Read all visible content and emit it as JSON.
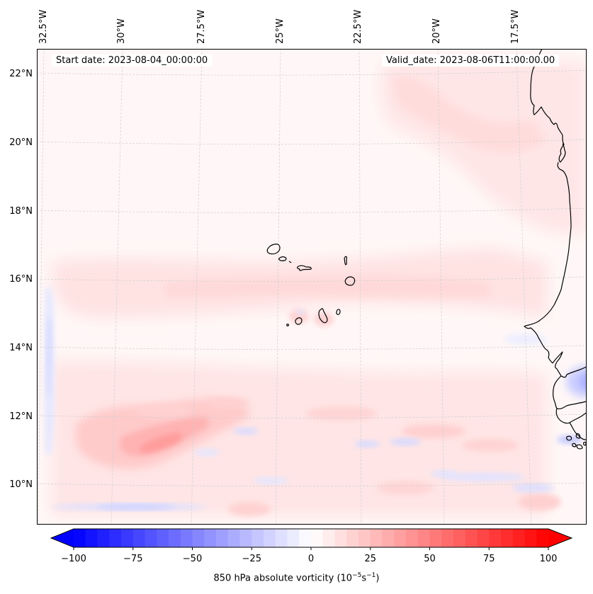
{
  "chart_data": {
    "type": "heatmap",
    "title": "",
    "projection": "lat-lon map, North Atlantic off West Africa (Cape Verde region)",
    "variable": "850 hPa absolute vorticity",
    "units": "10^-5 s^-1",
    "annotations": {
      "start_date": "Start date: 2023-08-04_00:00:00",
      "valid_date": "Valid_date: 2023-08-06T11:00:00.00"
    },
    "lon_ticks": [
      "32.5°W",
      "30°W",
      "27.5°W",
      "25°W",
      "22.5°W",
      "20°W",
      "17.5°W"
    ],
    "lon_values": [
      -32.5,
      -30,
      -27.5,
      -25,
      -22.5,
      -20,
      -17.5
    ],
    "lat_ticks": [
      "22°N",
      "20°N",
      "18°N",
      "16°N",
      "14°N",
      "12°N",
      "10°N"
    ],
    "lat_values": [
      22,
      20,
      18,
      16,
      14,
      12,
      10
    ],
    "extent": {
      "lon": [
        -33,
        -15.2
      ],
      "lat": [
        8.8,
        22.8
      ]
    },
    "grid": true,
    "colorbar": {
      "orientation": "horizontal",
      "placement": "bottom",
      "cmap": "bwr",
      "vmin": -100,
      "vmax": 100,
      "levels_step": 5,
      "extend": "both",
      "ticks": [
        -100,
        -75,
        -50,
        -25,
        0,
        25,
        50,
        75,
        100
      ],
      "tick_labels": [
        "−100",
        "−75",
        "−50",
        "−25",
        "0",
        "25",
        "50",
        "75",
        "100"
      ],
      "label_main": "850 hPa absolute vorticity (10",
      "label_exp1": "−5",
      "label_mid": "s",
      "label_exp2": "−1",
      "label_end": ")"
    },
    "features": [
      {
        "name": "positive-vorticity-max-southwest",
        "lon": -29.5,
        "lat": 11.3,
        "value": 30
      },
      {
        "name": "positive-band-16N",
        "lon_range": [
          -30,
          -17
        ],
        "lat": 15.8,
        "value": 10
      },
      {
        "name": "positive-region-northeast",
        "lon_range": [
          -22,
          -16
        ],
        "lat_range": [
          18.5,
          22.5
        ],
        "value": 8
      },
      {
        "name": "negative-strip-west-edge",
        "lon": -32.6,
        "lat_range": [
          10.5,
          16
        ],
        "value": -10
      },
      {
        "name": "negative-band-southwest",
        "lon_range": [
          -31.5,
          -26
        ],
        "lat": 9.3,
        "value": -12
      },
      {
        "name": "negative-coastal-guinea",
        "lon": -15.5,
        "lat": 12.8,
        "value": -25
      },
      {
        "name": "negative-bissagos",
        "lon": -16.3,
        "lat": 11.1,
        "value": -18
      }
    ]
  }
}
